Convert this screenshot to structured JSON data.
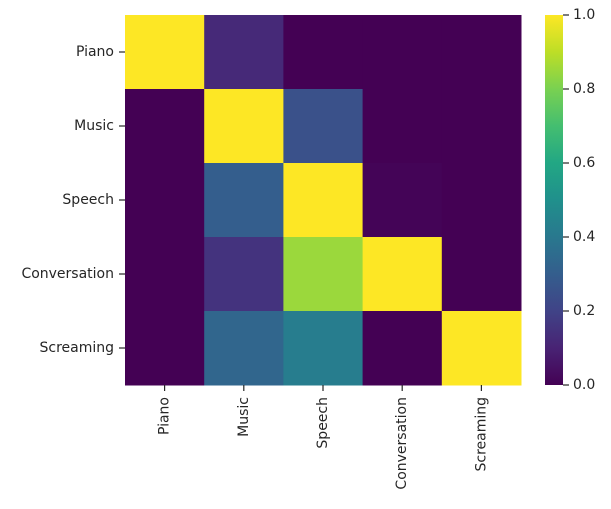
{
  "chart_data": {
    "type": "heatmap",
    "title": "",
    "xlabel": "",
    "ylabel": "",
    "rows": [
      "Piano",
      "Music",
      "Speech",
      "Conversation",
      "Screaming"
    ],
    "columns": [
      "Piano",
      "Music",
      "Speech",
      "Conversation",
      "Screaming"
    ],
    "values": [
      [
        1.0,
        0.12,
        0.0,
        0.0,
        0.0
      ],
      [
        0.0,
        1.0,
        0.25,
        0.0,
        0.0
      ],
      [
        0.0,
        0.3,
        1.0,
        0.01,
        0.0
      ],
      [
        0.0,
        0.15,
        0.85,
        1.0,
        0.0
      ],
      [
        0.0,
        0.33,
        0.42,
        0.0,
        1.0
      ]
    ],
    "colormap": "viridis",
    "vmin": 0.0,
    "vmax": 1.0,
    "colorbar": {
      "ticks": [
        0.0,
        0.2,
        0.4,
        0.6,
        0.8,
        1.0
      ],
      "tick_labels": [
        "0.0",
        "0.2",
        "0.4",
        "0.6",
        "0.8",
        "1.0"
      ]
    },
    "grid": false
  }
}
